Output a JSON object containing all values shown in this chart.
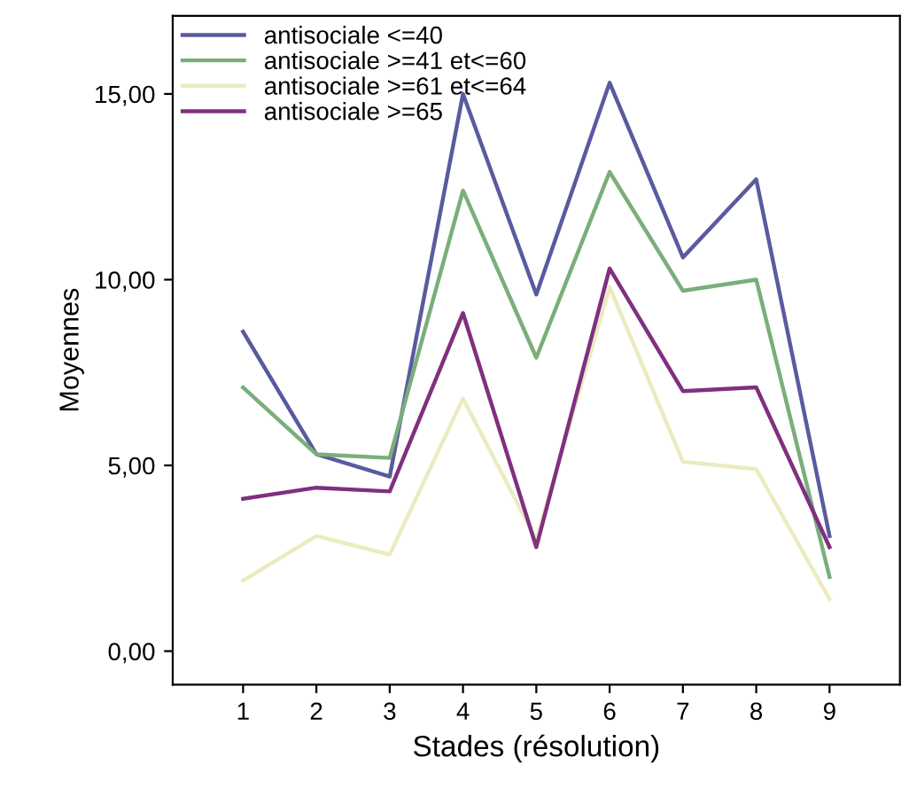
{
  "chart_data": {
    "type": "line",
    "xlabel": "Stades (résolution)",
    "ylabel": "Moyennes",
    "categories": [
      "1",
      "2",
      "3",
      "4",
      "5",
      "6",
      "7",
      "8",
      "9"
    ],
    "series": [
      {
        "name": "antisociale <=40",
        "color": "#5a5aa0",
        "values": [
          8.6,
          5.3,
          4.7,
          15.0,
          9.6,
          15.3,
          10.6,
          12.7,
          3.1
        ]
      },
      {
        "name": "antisociale >=41 et<=60",
        "color": "#7aae7a",
        "values": [
          7.1,
          5.3,
          5.2,
          12.4,
          7.9,
          12.9,
          9.7,
          10.0,
          2.0
        ]
      },
      {
        "name": "antisociale >=61 et<=64",
        "color": "#ecebc0",
        "values": [
          1.9,
          3.1,
          2.6,
          6.8,
          3.0,
          9.8,
          5.1,
          4.9,
          1.4
        ]
      },
      {
        "name": "antisociale >=65",
        "color": "#803080",
        "values": [
          4.1,
          4.4,
          4.3,
          9.1,
          2.8,
          10.3,
          7.0,
          7.1,
          2.8
        ]
      }
    ],
    "ylim": [
      -0.9,
      17.1
    ],
    "yticks": [
      {
        "value": 0,
        "label": "0,00"
      },
      {
        "value": 5,
        "label": "5,00"
      },
      {
        "value": 10,
        "label": "10,00"
      },
      {
        "value": 15,
        "label": "15,00"
      }
    ],
    "grid": false,
    "legend": "top left",
    "marker": "none",
    "line_style": "solid"
  }
}
